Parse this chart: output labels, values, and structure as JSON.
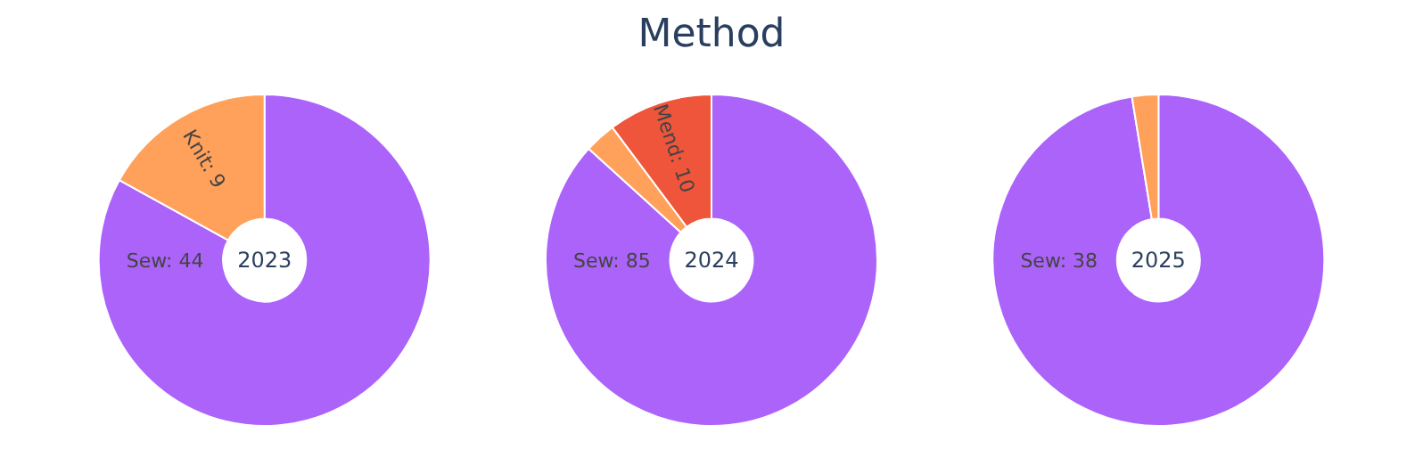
{
  "chart_data": [
    {
      "type": "donut",
      "annotations": [
        "2023"
      ],
      "categories": [
        "Sew: 44",
        "Knit: 9"
      ],
      "values": [
        44,
        9
      ],
      "colors": [
        "#ab63fa",
        "#ffa15a"
      ]
    },
    {
      "type": "donut",
      "title": "Method",
      "annotations": [
        "2024"
      ],
      "categories": [
        "Sew: 85",
        null,
        "Mend: 10"
      ],
      "values": [
        85,
        3,
        10
      ],
      "colors": [
        "#ab63fa",
        "#ffa15a",
        "#ef553b"
      ]
    },
    {
      "type": "donut",
      "annotations": [
        "2025"
      ],
      "categories": [
        "Sew: 38",
        null
      ],
      "values": [
        38,
        1
      ],
      "colors": [
        "#ab63fa",
        "#ffa15a"
      ]
    }
  ]
}
